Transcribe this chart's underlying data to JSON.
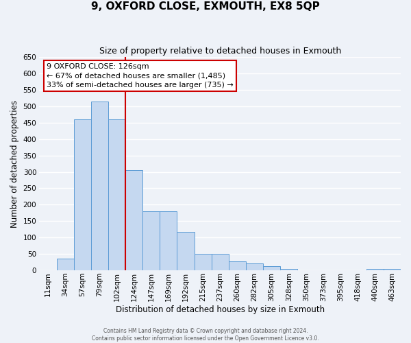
{
  "title": "9, OXFORD CLOSE, EXMOUTH, EX8 5QP",
  "subtitle": "Size of property relative to detached houses in Exmouth",
  "xlabel": "Distribution of detached houses by size in Exmouth",
  "ylabel": "Number of detached properties",
  "bar_labels": [
    "11sqm",
    "34sqm",
    "57sqm",
    "79sqm",
    "102sqm",
    "124sqm",
    "147sqm",
    "169sqm",
    "192sqm",
    "215sqm",
    "237sqm",
    "260sqm",
    "282sqm",
    "305sqm",
    "328sqm",
    "350sqm",
    "373sqm",
    "395sqm",
    "418sqm",
    "440sqm",
    "463sqm"
  ],
  "bar_heights": [
    0,
    35,
    460,
    515,
    460,
    305,
    180,
    180,
    118,
    50,
    50,
    28,
    20,
    12,
    5,
    0,
    0,
    0,
    0,
    5,
    5
  ],
  "bar_color": "#c5d8f0",
  "bar_edge_color": "#5b9bd5",
  "vline_x": 5,
  "vline_color": "#cc0000",
  "ylim": [
    0,
    650
  ],
  "yticks": [
    0,
    50,
    100,
    150,
    200,
    250,
    300,
    350,
    400,
    450,
    500,
    550,
    600,
    650
  ],
  "annotation_title": "9 OXFORD CLOSE: 126sqm",
  "annotation_line1": "← 67% of detached houses are smaller (1,485)",
  "annotation_line2": "33% of semi-detached houses are larger (735) →",
  "annotation_box_color": "#ffffff",
  "annotation_box_edge": "#cc0000",
  "footer_line1": "Contains HM Land Registry data © Crown copyright and database right 2024.",
  "footer_line2": "Contains public sector information licensed under the Open Government Licence v3.0.",
  "background_color": "#eef2f8",
  "grid_color": "#ffffff",
  "title_fontsize": 11,
  "subtitle_fontsize": 9,
  "axis_label_fontsize": 8.5,
  "tick_fontsize": 7.5,
  "annotation_fontsize": 8,
  "footer_fontsize": 5.5
}
